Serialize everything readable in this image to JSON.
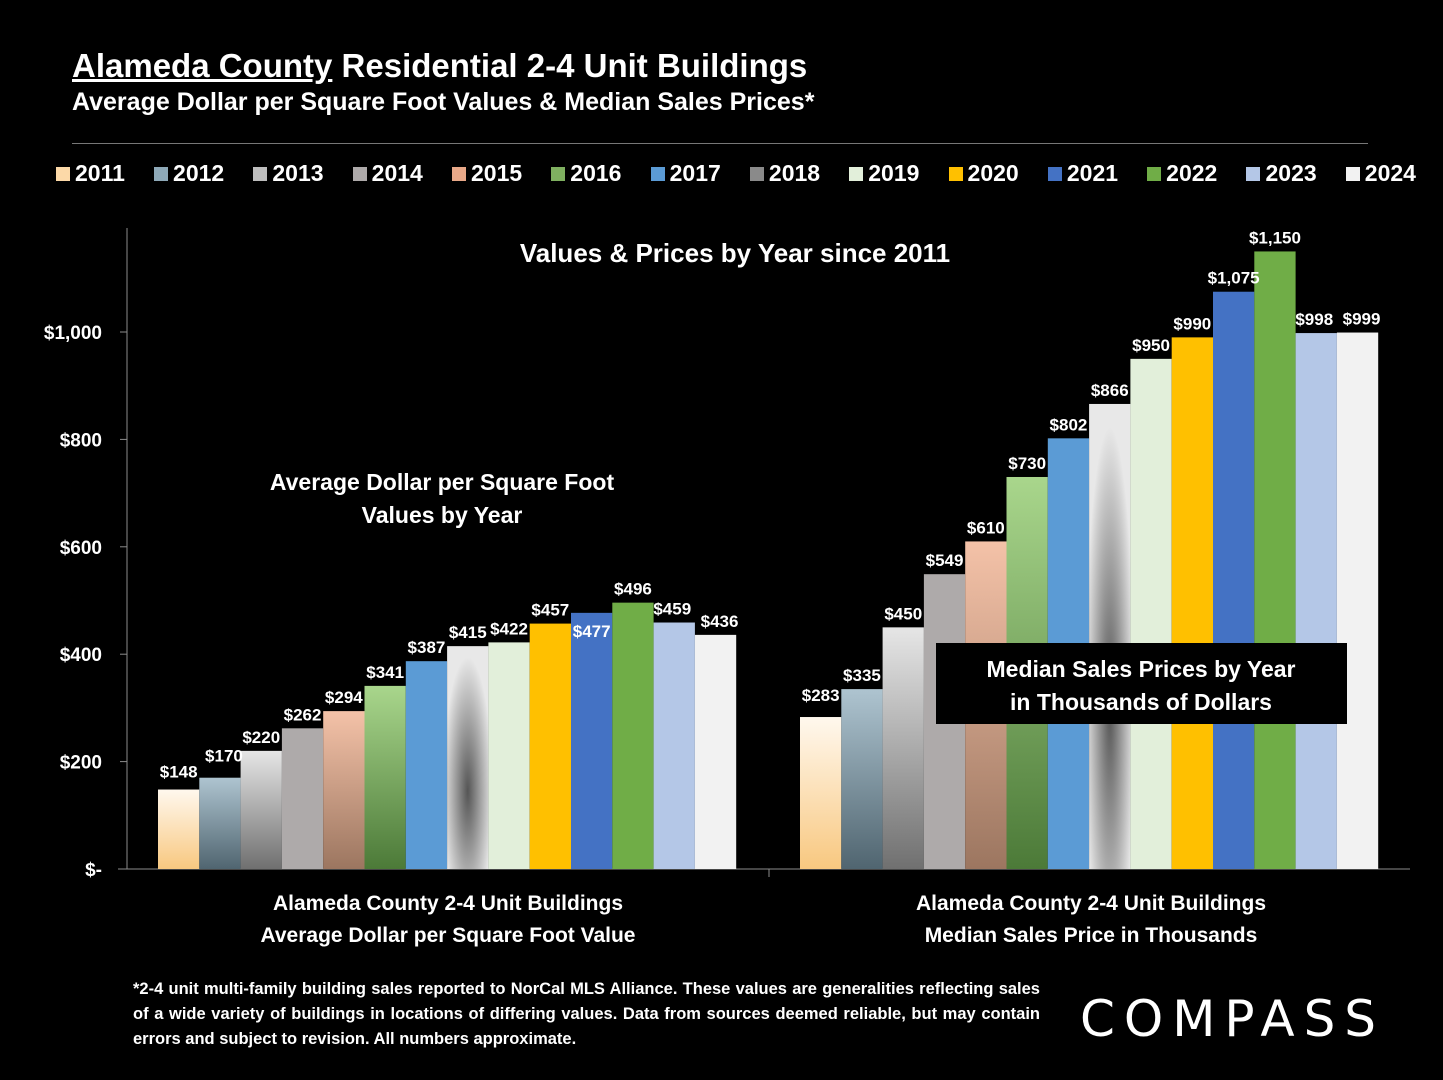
{
  "header": {
    "title_underlined": "Alameda County",
    "title_rest": " Residential 2-4 Unit Buildings",
    "subtitle": "Average Dollar per Square Foot Values & Median Sales Prices*"
  },
  "legend": [
    {
      "label": "2011",
      "color": "#fcd9a8"
    },
    {
      "label": "2012",
      "color": "#8ea9b8"
    },
    {
      "label": "2013",
      "color": "#bdbdbd"
    },
    {
      "label": "2014",
      "color": "#aeaaaa"
    },
    {
      "label": "2015",
      "color": "#e8a888"
    },
    {
      "label": "2016",
      "color": "#7fb060"
    },
    {
      "label": "2017",
      "color": "#5b9bd5"
    },
    {
      "label": "2018",
      "color": "#8a8a8a"
    },
    {
      "label": "2019",
      "color": "#e2efda"
    },
    {
      "label": "2020",
      "color": "#ffc000"
    },
    {
      "label": "2021",
      "color": "#4472c4"
    },
    {
      "label": "2022",
      "color": "#70ad47"
    },
    {
      "label": "2023",
      "color": "#b4c7e7"
    },
    {
      "label": "2024",
      "color": "#f2f2f2"
    }
  ],
  "chart_data": {
    "type": "bar",
    "title": "Values & Prices by Year since 2011",
    "ylim": [
      0,
      1200
    ],
    "yticks": [
      {
        "value": 0,
        "label": "$-"
      },
      {
        "value": 200,
        "label": "$200"
      },
      {
        "value": 400,
        "label": "$400"
      },
      {
        "value": 600,
        "label": "$600"
      },
      {
        "value": 800,
        "label": "$800"
      },
      {
        "value": 1000,
        "label": "$1,000"
      }
    ],
    "grid": false,
    "legend_position": "top",
    "groups": [
      {
        "label_line1": "Alameda County 2-4 Unit Buildings",
        "label_line2": "Average Dollar per Square Foot Value",
        "annotation_line1": "Average Dollar per Square Foot",
        "annotation_line2": "Values by Year",
        "values": [
          148,
          170,
          220,
          262,
          294,
          341,
          387,
          415,
          422,
          457,
          477,
          496,
          459,
          436
        ],
        "value_labels": [
          "$148",
          "$170",
          "$220",
          "$262",
          "$294",
          "$341",
          "$387",
          "$415",
          "$422",
          "$457",
          "$477",
          "$496",
          "$459",
          "$436"
        ]
      },
      {
        "label_line1": "Alameda County 2-4 Unit Buildings",
        "label_line2": "Median Sales Price in Thousands",
        "annotation_line1": "Median Sales Prices by Year",
        "annotation_line2": "in Thousands of Dollars",
        "values": [
          283,
          335,
          450,
          549,
          610,
          730,
          802,
          866,
          950,
          990,
          1075,
          1150,
          998,
          999
        ],
        "value_labels": [
          "$283",
          "$335",
          "$450",
          "$549",
          "$610",
          "$730",
          "$802",
          "$866",
          "$950",
          "$990",
          "$1,075",
          "$1,150",
          "$998",
          "$999"
        ]
      }
    ]
  },
  "footnote": "*2-4 unit multi-family building sales reported to NorCal MLS Alliance. These values are generalities reflecting sales of a wide variety of buildings in locations of differing values. Data from sources deemed reliable, but may contain errors and subject to revision. All numbers approximate.",
  "logo": "COMPASS"
}
